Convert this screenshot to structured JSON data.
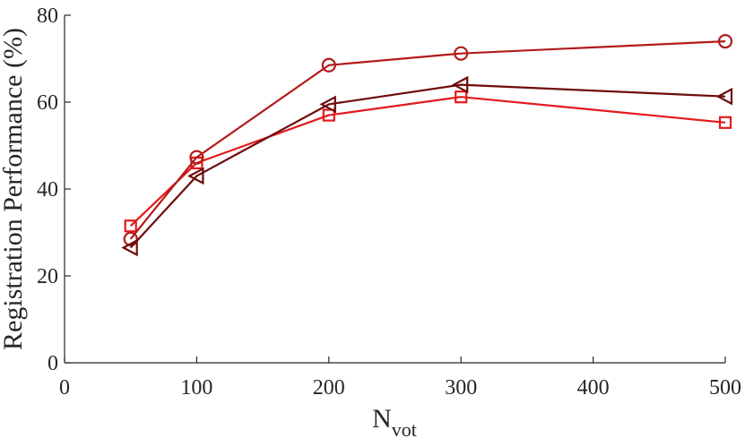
{
  "chart_data": {
    "type": "line",
    "xlabel": "N",
    "xlabel_subscript": "vot",
    "ylabel": "Registration Performance (%)",
    "xlim": [
      0,
      500
    ],
    "ylim": [
      0,
      80
    ],
    "xticks": [
      0,
      100,
      200,
      300,
      400,
      500
    ],
    "yticks": [
      0,
      20,
      40,
      60,
      80
    ],
    "x": [
      50,
      100,
      200,
      300,
      500
    ],
    "grid": false,
    "series": [
      {
        "color": "#e31a1c",
        "marker": "square",
        "values": [
          31.5,
          46.0,
          57.0,
          61.2,
          55.3
        ]
      },
      {
        "color": "#b21a1a",
        "marker": "circle",
        "values": [
          28.5,
          47.3,
          68.5,
          71.2,
          74.0
        ]
      },
      {
        "color": "#6e0b0b",
        "marker": "triangle-left",
        "values": [
          26.5,
          43.0,
          59.5,
          64.0,
          61.3
        ]
      }
    ]
  }
}
